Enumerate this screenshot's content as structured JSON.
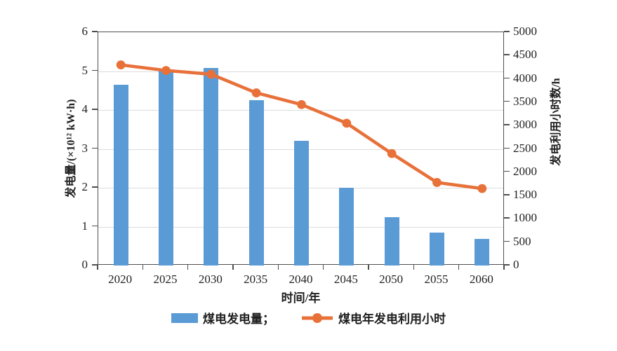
{
  "style": {
    "bar_color": "#5b9bd5",
    "line_color": "#e8713a",
    "axis_color": "#4f4f4f",
    "grid_color": "#dcdcdc",
    "text_color": "#1f1f1f",
    "background": "#ffffff"
  },
  "chart_data": {
    "type": "bar+line combo, dual y-axis",
    "title": "",
    "categories": [
      "2020",
      "2025",
      "2030",
      "2035",
      "2040",
      "2045",
      "2050",
      "2055",
      "2060"
    ],
    "series": [
      {
        "name": "煤电发电量",
        "type": "bar",
        "y_axis": "left",
        "unit": "×10¹² kW·h",
        "values": [
          4.65,
          5.05,
          5.08,
          4.25,
          3.2,
          2.0,
          1.25,
          0.85,
          0.68
        ]
      },
      {
        "name": "煤电年发电利用小时",
        "type": "line",
        "y_axis": "right",
        "unit": "h",
        "values": [
          4300,
          4180,
          4100,
          3700,
          3450,
          3050,
          2400,
          1780,
          1650
        ]
      }
    ],
    "xlabel": "时间/年",
    "ylabel_left": "发电量/(×10¹² kW·h)",
    "ylabel_right": "发电利用小时数/h",
    "left_axis": {
      "min": 0,
      "max": 6,
      "step": 1,
      "ticks": [
        "0",
        "1",
        "2",
        "3",
        "4",
        "5",
        "6"
      ]
    },
    "right_axis": {
      "min": 0,
      "max": 5000,
      "step": 500,
      "ticks": [
        "0",
        "500",
        "1000",
        "1500",
        "2000",
        "2500",
        "3000",
        "3500",
        "4000",
        "4500",
        "5000"
      ]
    },
    "grid": "horizontal gridlines at left-axis integers 1-5",
    "legend_position": "bottom center",
    "legend": [
      {
        "label": "煤电发电量；",
        "swatch": "bar"
      },
      {
        "label": "煤电年发电利用小时",
        "swatch": "line-marker"
      }
    ]
  }
}
